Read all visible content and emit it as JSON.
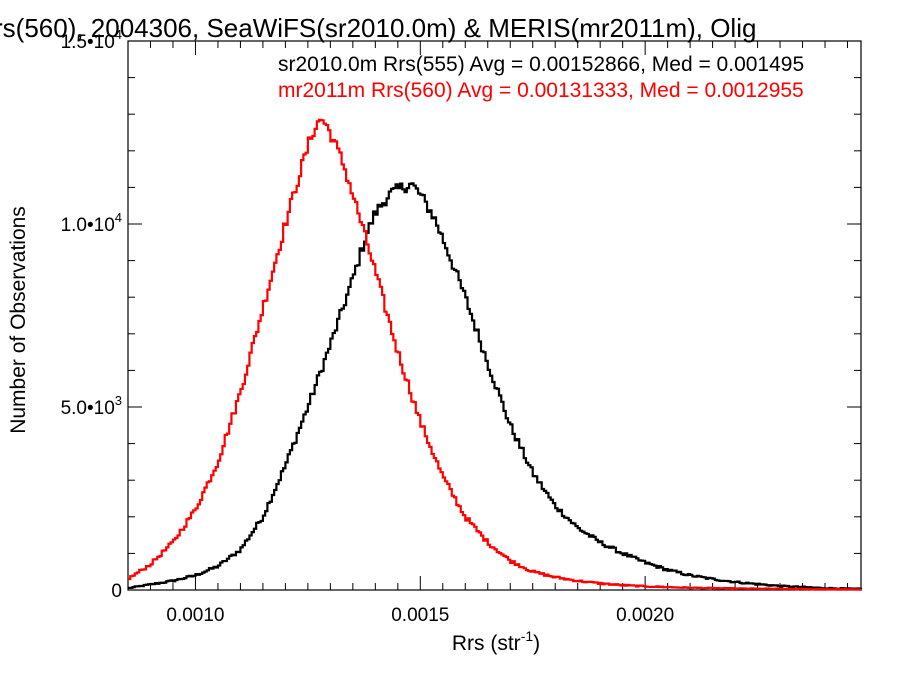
{
  "chart_data": {
    "type": "histogram",
    "title": "rs(560), 2004306, SeaWiFS(sr2010.0m) & MERIS(mr2011m), Olig",
    "xlabel": "Rrs (str",
    "xlabel_sup": "-1",
    "xlabel_close": ")",
    "ylabel": "Number of Observations",
    "xlim": [
      0.00085,
      0.00248
    ],
    "ylim": [
      0,
      15000
    ],
    "x_ticks": [
      {
        "value": 0.001,
        "label": "0.0010"
      },
      {
        "value": 0.0015,
        "label": "0.0015"
      },
      {
        "value": 0.002,
        "label": "0.0020"
      }
    ],
    "y_ticks": [
      {
        "value": 0,
        "base": "0",
        "exp": ""
      },
      {
        "value": 5000,
        "base": "5.0•10",
        "exp": "3"
      },
      {
        "value": 10000,
        "base": "1.0•10",
        "exp": "4"
      },
      {
        "value": 15000,
        "base": "1.5•10",
        "exp": "4"
      }
    ],
    "series": [
      {
        "name": "sr2010.0m Rrs(555)",
        "legend_text": "sr2010.0m Rrs(555) Avg = 0.00152866, Med = 0.001495",
        "color": "#000000",
        "points": [
          [
            0.00085,
            50
          ],
          [
            0.0009,
            150
          ],
          [
            0.00095,
            250
          ],
          [
            0.001,
            400
          ],
          [
            0.00105,
            650
          ],
          [
            0.0011,
            1100
          ],
          [
            0.00115,
            2000
          ],
          [
            0.0012,
            3400
          ],
          [
            0.00125,
            5000
          ],
          [
            0.0013,
            6700
          ],
          [
            0.00135,
            8500
          ],
          [
            0.00138,
            9700
          ],
          [
            0.0014,
            10300
          ],
          [
            0.00143,
            10800
          ],
          [
            0.00146,
            11000
          ],
          [
            0.00148,
            11100
          ],
          [
            0.0015,
            10800
          ],
          [
            0.00153,
            10200
          ],
          [
            0.00156,
            9300
          ],
          [
            0.0016,
            8000
          ],
          [
            0.00165,
            6200
          ],
          [
            0.0017,
            4500
          ],
          [
            0.00175,
            3200
          ],
          [
            0.0018,
            2300
          ],
          [
            0.00185,
            1700
          ],
          [
            0.0019,
            1300
          ],
          [
            0.00195,
            1000
          ],
          [
            0.002,
            750
          ],
          [
            0.00205,
            550
          ],
          [
            0.0021,
            400
          ],
          [
            0.00215,
            300
          ],
          [
            0.0022,
            220
          ],
          [
            0.00225,
            160
          ],
          [
            0.0023,
            110
          ],
          [
            0.00235,
            80
          ],
          [
            0.0024,
            50
          ],
          [
            0.00248,
            30
          ]
        ]
      },
      {
        "name": "mr2011m Rrs(560)",
        "legend_text": "mr2011m Rrs(560) Avg = 0.00131333, Med = 0.0012955",
        "color": "#ff0000",
        "points": [
          [
            0.00085,
            300
          ],
          [
            0.0009,
            700
          ],
          [
            0.00095,
            1300
          ],
          [
            0.001,
            2200
          ],
          [
            0.00105,
            3500
          ],
          [
            0.0011,
            5400
          ],
          [
            0.00115,
            7700
          ],
          [
            0.0012,
            10000
          ],
          [
            0.00123,
            11300
          ],
          [
            0.00126,
            12500
          ],
          [
            0.00128,
            12900
          ],
          [
            0.0013,
            12500
          ],
          [
            0.00133,
            11600
          ],
          [
            0.00136,
            10400
          ],
          [
            0.0014,
            8700
          ],
          [
            0.00145,
            6500
          ],
          [
            0.0015,
            4600
          ],
          [
            0.00155,
            3100
          ],
          [
            0.0016,
            2000
          ],
          [
            0.00165,
            1300
          ],
          [
            0.0017,
            800
          ],
          [
            0.00175,
            500
          ],
          [
            0.0018,
            350
          ],
          [
            0.00185,
            250
          ],
          [
            0.0019,
            180
          ],
          [
            0.00195,
            130
          ],
          [
            0.002,
            100
          ],
          [
            0.00205,
            80
          ],
          [
            0.0021,
            60
          ],
          [
            0.00215,
            50
          ],
          [
            0.0022,
            40
          ],
          [
            0.0023,
            30
          ],
          [
            0.0024,
            20
          ],
          [
            0.00248,
            15
          ]
        ]
      }
    ]
  }
}
